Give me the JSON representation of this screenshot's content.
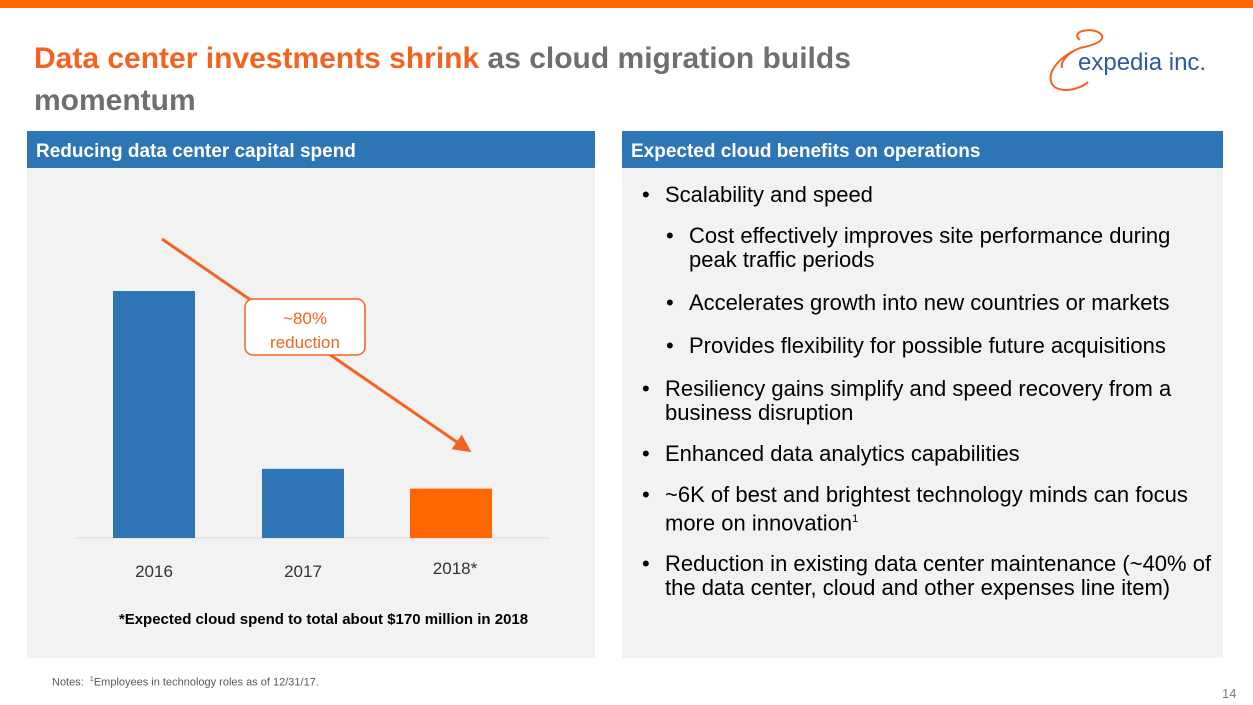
{
  "slide": {
    "title_accent": "Data center investments shrink",
    "title_rest": " as cloud migration builds momentum",
    "logo_text": "expedia inc.",
    "page_number": "14",
    "notes_prefix": "Notes:",
    "notes_sup": "1",
    "notes_text": "Employees in technology roles as of 12/31/17."
  },
  "left_panel": {
    "header": "Reducing data center capital spend",
    "annotation_line1": "~80%",
    "annotation_line2": "reduction",
    "footnote": "*Expected cloud spend to total about $170 million in 2018"
  },
  "chart_data": {
    "type": "bar",
    "categories": [
      "2016",
      "2017",
      "2018*"
    ],
    "values": [
      100,
      28,
      20
    ],
    "colors": [
      "#2e75b6",
      "#2e75b6",
      "#ff6600"
    ],
    "title": "",
    "xlabel": "",
    "ylabel": "",
    "ylim": [
      0,
      100
    ],
    "grid": false,
    "annotation": "~80% reduction"
  },
  "right_panel": {
    "header": "Expected cloud benefits on operations",
    "items": [
      {
        "level": 1,
        "text": "Scalability and speed"
      },
      {
        "level": 2,
        "text": "Cost effectively improves site performance during peak traffic periods"
      },
      {
        "level": 2,
        "text": "Accelerates growth into new countries or markets"
      },
      {
        "level": 2,
        "text": "Provides flexibility for possible future acquisitions"
      },
      {
        "level": 1,
        "text": "Resiliency gains simplify and speed recovery from a business disruption"
      },
      {
        "level": 1,
        "text": "Enhanced data analytics capabilities"
      },
      {
        "level": 1,
        "text": "~6K of best and brightest technology minds can focus more on innovation",
        "sup": "1"
      },
      {
        "level": 1,
        "text": "Reduction in existing data center maintenance (~40% of the data center, cloud and other expenses line item)"
      }
    ]
  },
  "colors": {
    "accent_orange": "#ff6600",
    "title_orange": "#f26322",
    "brand_blue": "#2e75b6",
    "panel_gray": "#f2f2f2"
  }
}
